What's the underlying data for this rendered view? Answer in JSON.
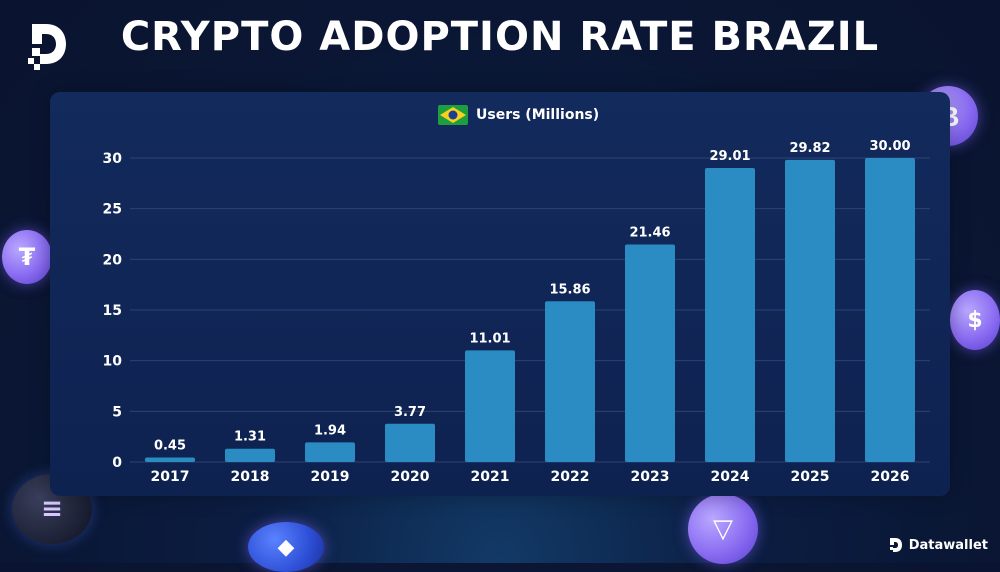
{
  "header": {
    "title": "CRYPTO ADOPTION RATE BRAZIL"
  },
  "legend": {
    "label": "Users (Millions)",
    "flag": "brazil-flag-icon"
  },
  "brand": {
    "name": "Datawallet"
  },
  "colors": {
    "bar": "#2b8cc4",
    "grid": "#2d4373",
    "text": "#ffffff",
    "background": "#0b1d42",
    "coin": "#8a6cf2"
  },
  "decorations": [
    "bitcoin-icon",
    "tether-icon",
    "usdc-icon",
    "solana-icon",
    "ethereum-icon",
    "tron-icon"
  ],
  "chart_data": {
    "type": "bar",
    "categories": [
      "2017",
      "2018",
      "2019",
      "2020",
      "2021",
      "2022",
      "2023",
      "2024",
      "2025",
      "2026"
    ],
    "series": [
      {
        "name": "Users (Millions)",
        "values": [
          0.45,
          1.31,
          1.94,
          3.77,
          11.01,
          15.86,
          21.46,
          29.01,
          29.82,
          30.0
        ]
      }
    ],
    "value_labels": [
      "0.45",
      "1.31",
      "1.94",
      "3.77",
      "11.01",
      "15.86",
      "21.46",
      "29.01",
      "29.82",
      "30.00"
    ],
    "yticks": [
      "0",
      "5",
      "10",
      "15",
      "20",
      "25",
      "30"
    ],
    "ylim": [
      0,
      30
    ],
    "grid": true,
    "legend_position": "top-center"
  }
}
